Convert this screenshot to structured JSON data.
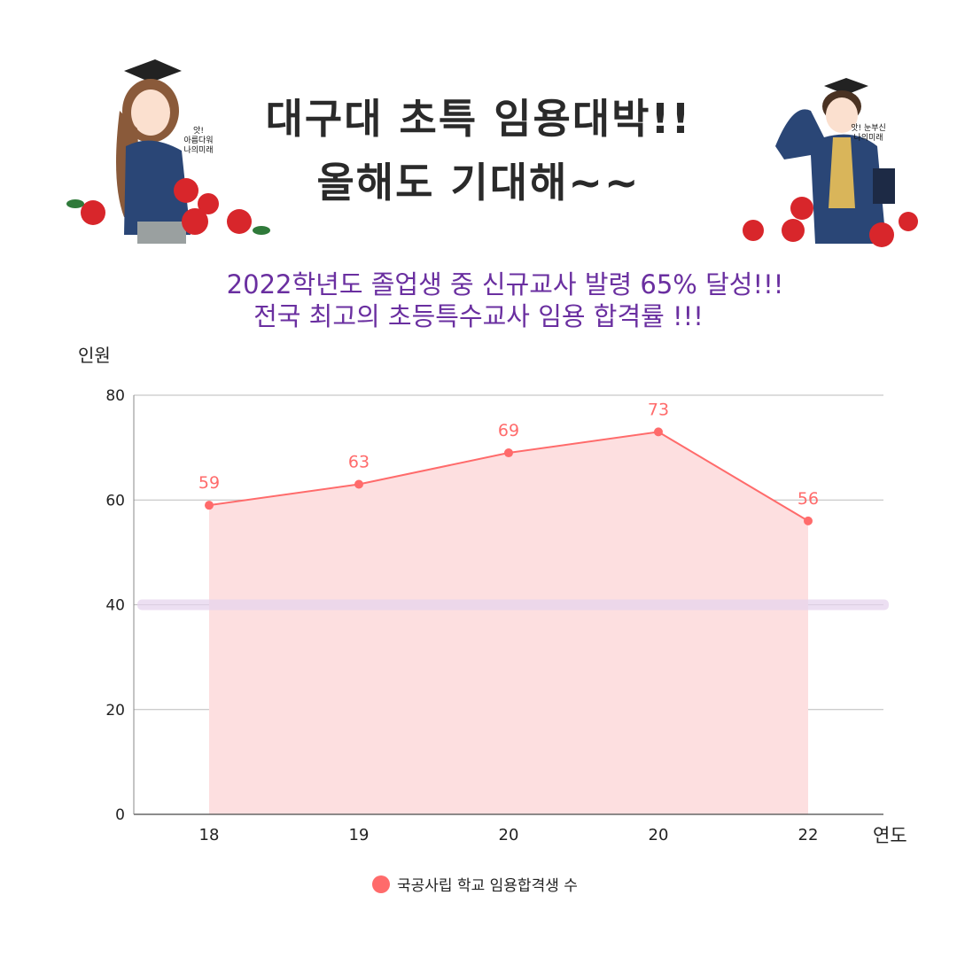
{
  "header": {
    "line1": "대구대 초특 임용대박!!",
    "line2": "올해도 기대해~~",
    "sub1": "2022학년도 졸업생 중 신규교사 발령 65% 달성!!!",
    "sub2": "전국 최고의 초등특수교사 임용 합격률 !!!"
  },
  "illustrations": {
    "left_caption": "앗! 아름다워 나의미래",
    "right_caption": "앗! 눈부신 나의미래"
  },
  "colors": {
    "line": "#ff6b6b",
    "area": "#fddfe0",
    "highlight": "#e6d4ee",
    "title": "#2a2a2a",
    "subtitle": "#6a2fa0"
  },
  "chart_data": {
    "type": "area",
    "categories": [
      "18",
      "19",
      "20",
      "20",
      "22"
    ],
    "series": [
      {
        "name": "국공사립 학교 임용합격생 수",
        "values": [
          59,
          63,
          69,
          73,
          56
        ]
      }
    ],
    "xlabel": "연도",
    "ylabel": "인원",
    "ylim": [
      0,
      80
    ],
    "yticks": [
      0,
      20,
      40,
      60,
      80
    ],
    "grid": true,
    "highlight_line": 40,
    "data_labels": true,
    "legend": "bottom"
  }
}
